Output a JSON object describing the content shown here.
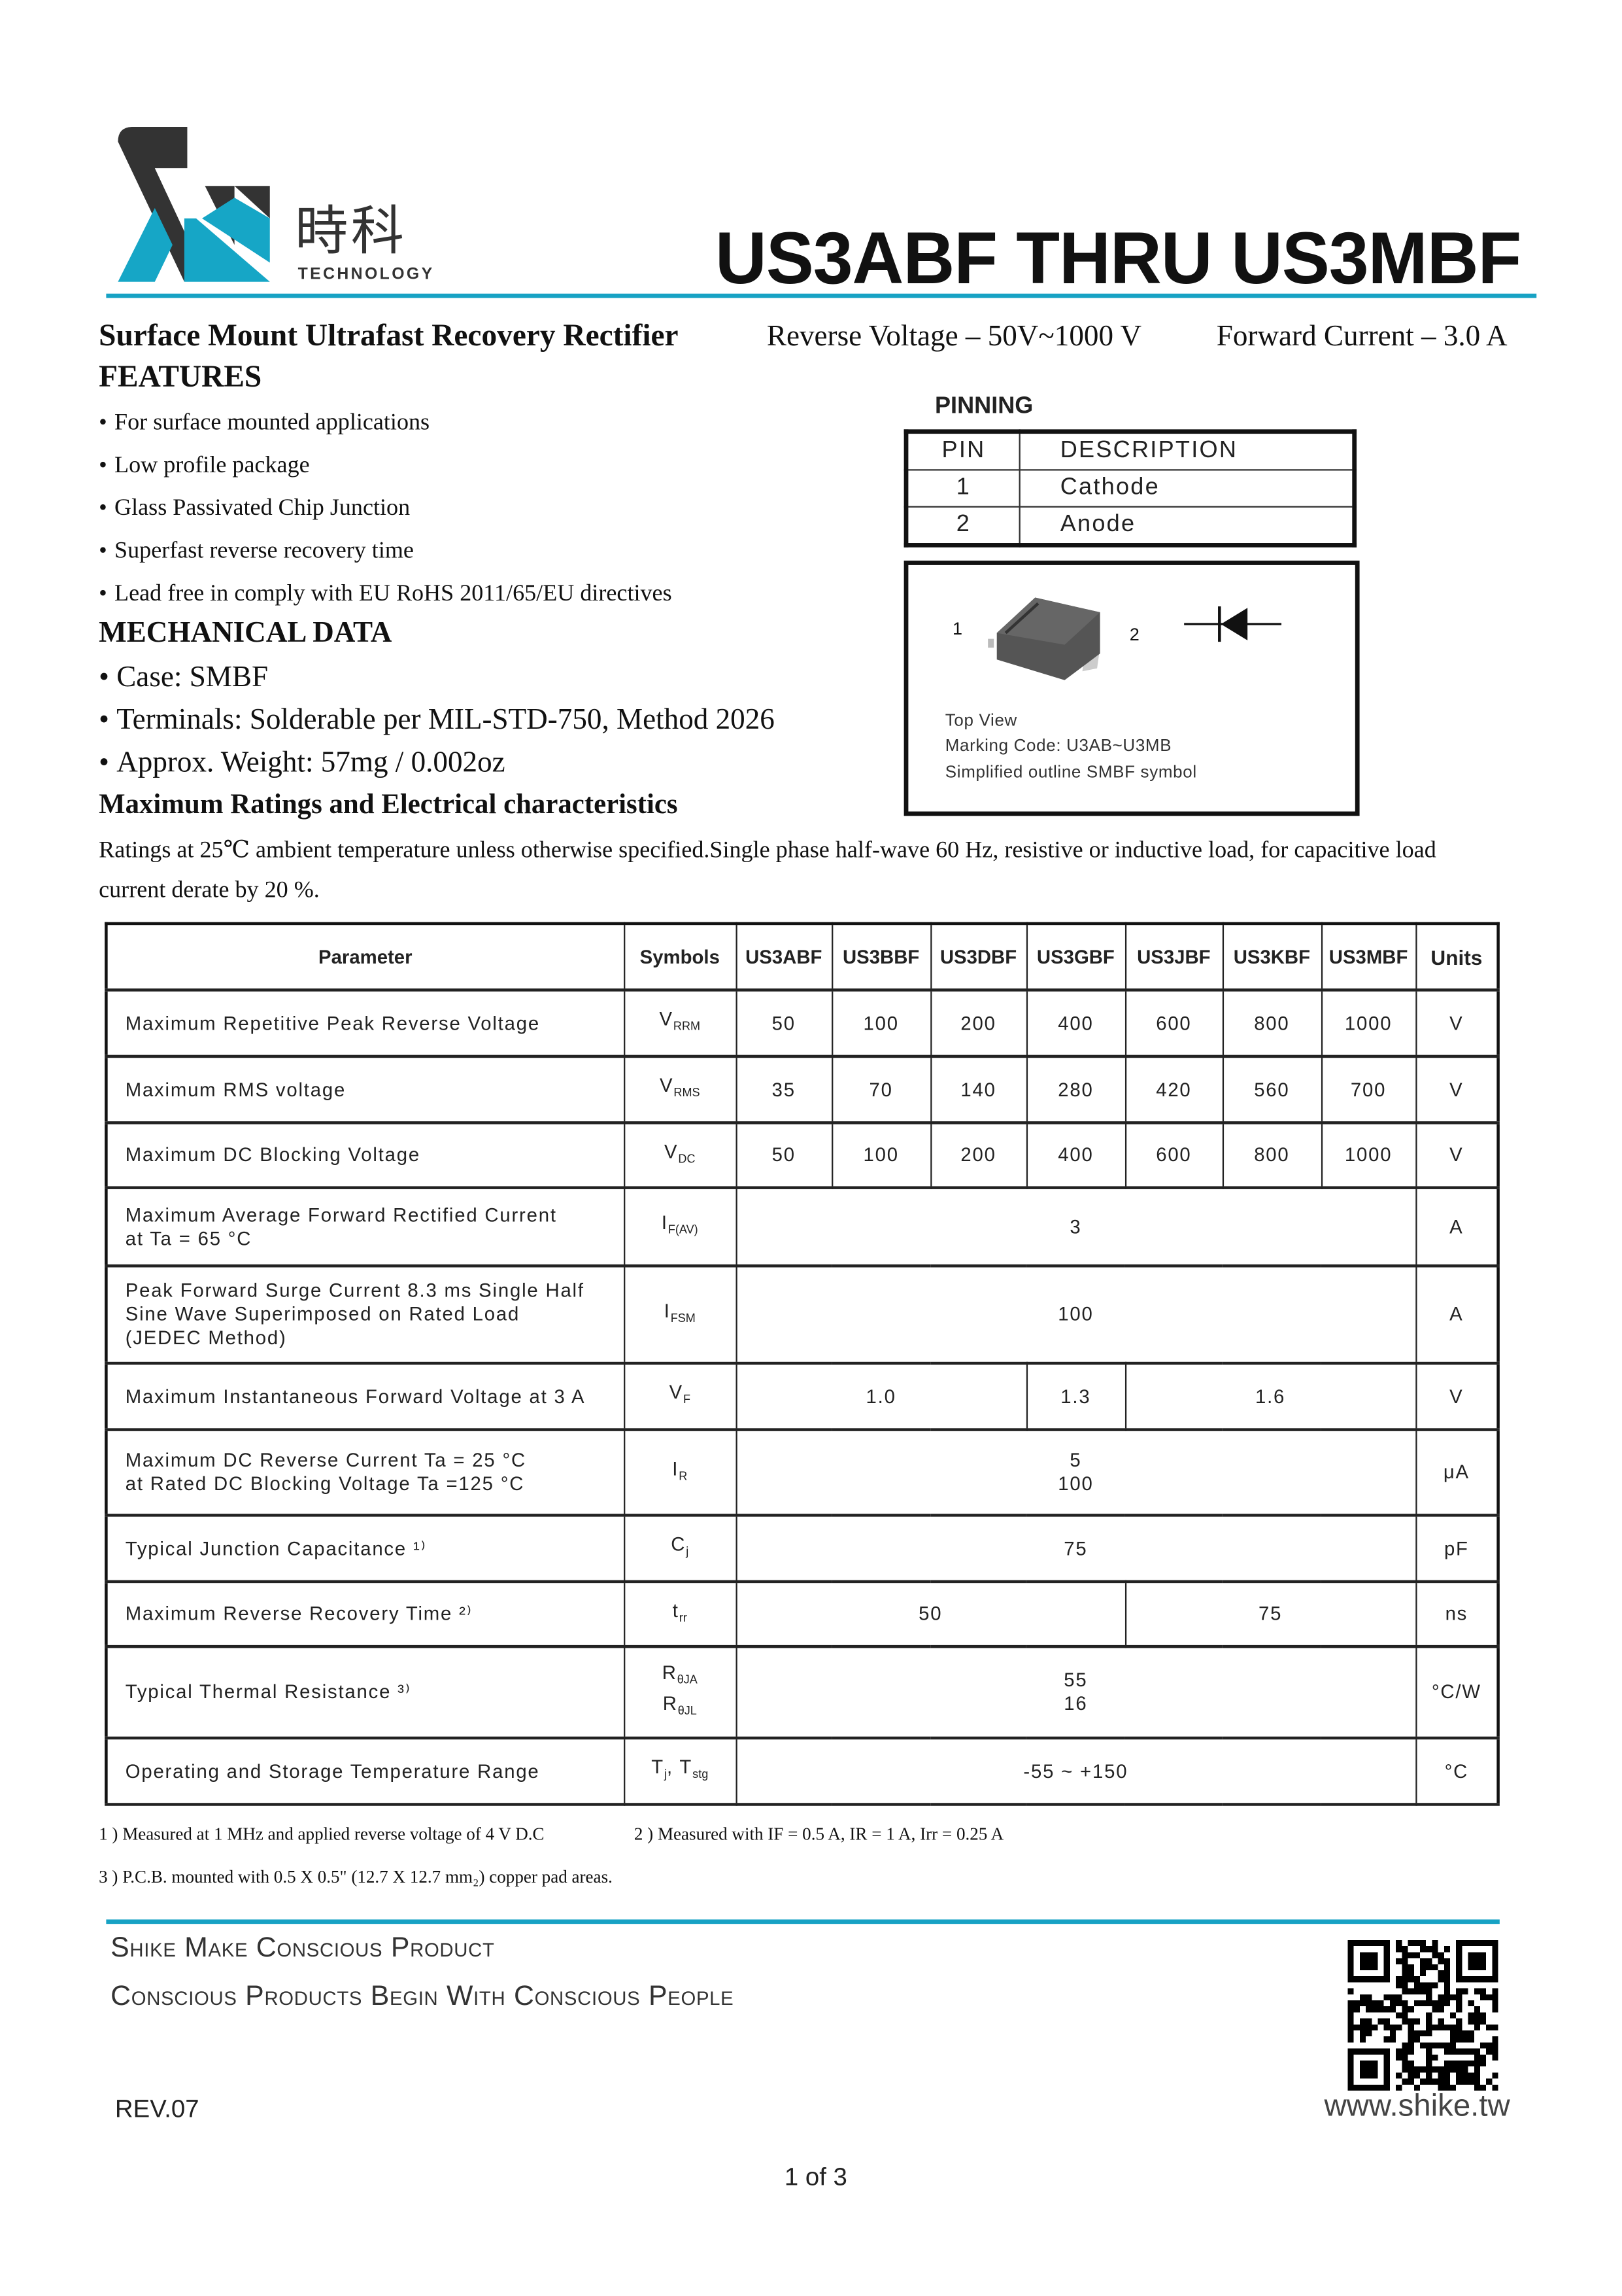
{
  "header": {
    "logo_cn": "時科",
    "logo_en": "TECHNOLOGY",
    "title": "US3ABF THRU US3MBF",
    "accent_color": "#17a2c4"
  },
  "subtitle": {
    "product": "Surface Mount Ultrafast Recovery Rectifier",
    "reverse_voltage": "Reverse Voltage – 50V~1000 V",
    "forward_current": "Forward Current – 3.0 A"
  },
  "features": {
    "heading": "FEATURES",
    "items": [
      "For surface mounted applications",
      "Low profile package",
      "Glass Passivated Chip Junction",
      "Superfast reverse recovery time",
      "Lead free in comply with EU RoHS 2011/65/EU directives"
    ]
  },
  "mechanical": {
    "heading": "MECHANICAL DATA",
    "items": [
      "Case: SMBF",
      "Terminals: Solderable per MIL-STD-750, Method 2026",
      "Approx. Weight: 57mg / 0.002oz"
    ]
  },
  "ratings": {
    "heading": "Maximum Ratings and Electrical characteristics",
    "text": "Ratings at 25℃ ambient temperature unless otherwise specified.Single phase half-wave 60 Hz, resistive or inductive load, for capacitive load",
    "text2": "current derate by 20 %."
  },
  "pinning": {
    "heading": "PINNING",
    "col_pin": "PIN",
    "col_desc": "DESCRIPTION",
    "rows": [
      {
        "pin": "1",
        "desc": "Cathode"
      },
      {
        "pin": "2",
        "desc": "Anode"
      }
    ],
    "pkg_pin1": "1",
    "pkg_pin2": "2",
    "caption1": "Top View",
    "caption2": "Marking Code:  U3AB~U3MB",
    "caption3": "Simplified outline SMBF  symbol"
  },
  "table": {
    "headers": [
      "Parameter",
      "Symbols",
      "US3ABF",
      "US3BBF",
      "US3DBF",
      "US3GBF",
      "US3JBF",
      "US3KBF",
      "US3MBF",
      "Units"
    ],
    "rows": [
      {
        "param": "Maximum Repetitive Peak Reverse Voltage",
        "sym": "V",
        "sub": "RRM",
        "values": [
          {
            "t": "50",
            "span": 1
          },
          {
            "t": "100",
            "span": 1
          },
          {
            "t": "200",
            "span": 1
          },
          {
            "t": "400",
            "span": 1
          },
          {
            "t": "600",
            "span": 1
          },
          {
            "t": "800",
            "span": 1
          },
          {
            "t": "1000",
            "span": 1
          }
        ],
        "unit": "V"
      },
      {
        "param": "Maximum RMS voltage",
        "sym": "V",
        "sub": "RMS",
        "values": [
          {
            "t": "35",
            "span": 1
          },
          {
            "t": "70",
            "span": 1
          },
          {
            "t": "140",
            "span": 1
          },
          {
            "t": "280",
            "span": 1
          },
          {
            "t": "420",
            "span": 1
          },
          {
            "t": "560",
            "span": 1
          },
          {
            "t": "700",
            "span": 1
          }
        ],
        "unit": "V"
      },
      {
        "param": "Maximum DC Blocking Voltage",
        "sym": "V",
        "sub": "DC",
        "values": [
          {
            "t": "50",
            "span": 1
          },
          {
            "t": "100",
            "span": 1
          },
          {
            "t": "200",
            "span": 1
          },
          {
            "t": "400",
            "span": 1
          },
          {
            "t": "600",
            "span": 1
          },
          {
            "t": "800",
            "span": 1
          },
          {
            "t": "1000",
            "span": 1
          }
        ],
        "unit": "V"
      },
      {
        "param": "Maximum Average Forward Rectified Current\nat Ta = 65 °C",
        "sym": "I",
        "sub": "F(AV)",
        "values": [
          {
            "t": "3",
            "span": 7
          }
        ],
        "unit": "A"
      },
      {
        "param": "Peak Forward Surge Current 8.3 ms Single Half\nSine Wave Superimposed on Rated Load\n(JEDEC Method)",
        "sym": "I",
        "sub": "FSM",
        "values": [
          {
            "t": "100",
            "span": 7
          }
        ],
        "unit": "A"
      },
      {
        "param": "Maximum Instantaneous Forward Voltage at 3 A",
        "sym": "V",
        "sub": "F",
        "values": [
          {
            "t": "1.0",
            "span": 3
          },
          {
            "t": "1.3",
            "span": 1
          },
          {
            "t": "1.6",
            "span": 3
          }
        ],
        "unit": "V"
      },
      {
        "param": "Maximum DC Reverse Current      Ta = 25 °C\nat Rated DC Blocking Voltage       Ta =125 °C",
        "sym": "I",
        "sub": "R",
        "values": [
          {
            "t": "5\n100",
            "span": 7
          }
        ],
        "unit": "μA"
      },
      {
        "param": "  Typical Junction Capacitance ¹⁾",
        "sym": "C",
        "sub": "j",
        "values": [
          {
            "t": "75",
            "span": 7
          }
        ],
        "unit": "pF"
      },
      {
        "param": "Maximum Reverse Recovery Time ²⁾",
        "sym": "t",
        "sub": "rr",
        "values": [
          {
            "t": "50",
            "span": 4
          },
          {
            "t": "75",
            "span": 3
          }
        ],
        "unit": "ns"
      },
      {
        "param": "Typical Thermal Resistance ³⁾",
        "sym": "R",
        "sub": "θJA",
        "sym2": "R",
        "sub2": "θJL",
        "values": [
          {
            "t": "55\n16",
            "span": 7
          }
        ],
        "unit": "°C/W"
      },
      {
        "param": "Operating and Storage Temperature Range",
        "sym": "T",
        "sub": "j",
        "symtail": ", T",
        "sub3": "stg",
        "values": [
          {
            "t": "-55 ~ +150",
            "span": 7
          }
        ],
        "unit": "°C"
      }
    ]
  },
  "notes": {
    "n1": "1 ) Measured at 1 MHz and applied reverse voltage of 4 V D.C",
    "n2": "2 ) Measured with IF = 0.5 A, IR = 1 A, Irr = 0.25 A",
    "n3": "3 ) P.C.B. mounted with 0.5 X 0.5\" (12.7 X 12.7 mm₂) copper pad areas."
  },
  "footer": {
    "slogan1": "Shike Make Conscious Product",
    "slogan2": "Conscious Products Begin With Conscious People",
    "rev": "REV.07",
    "website": "www.shike.tw",
    "page": "1 of 3"
  }
}
